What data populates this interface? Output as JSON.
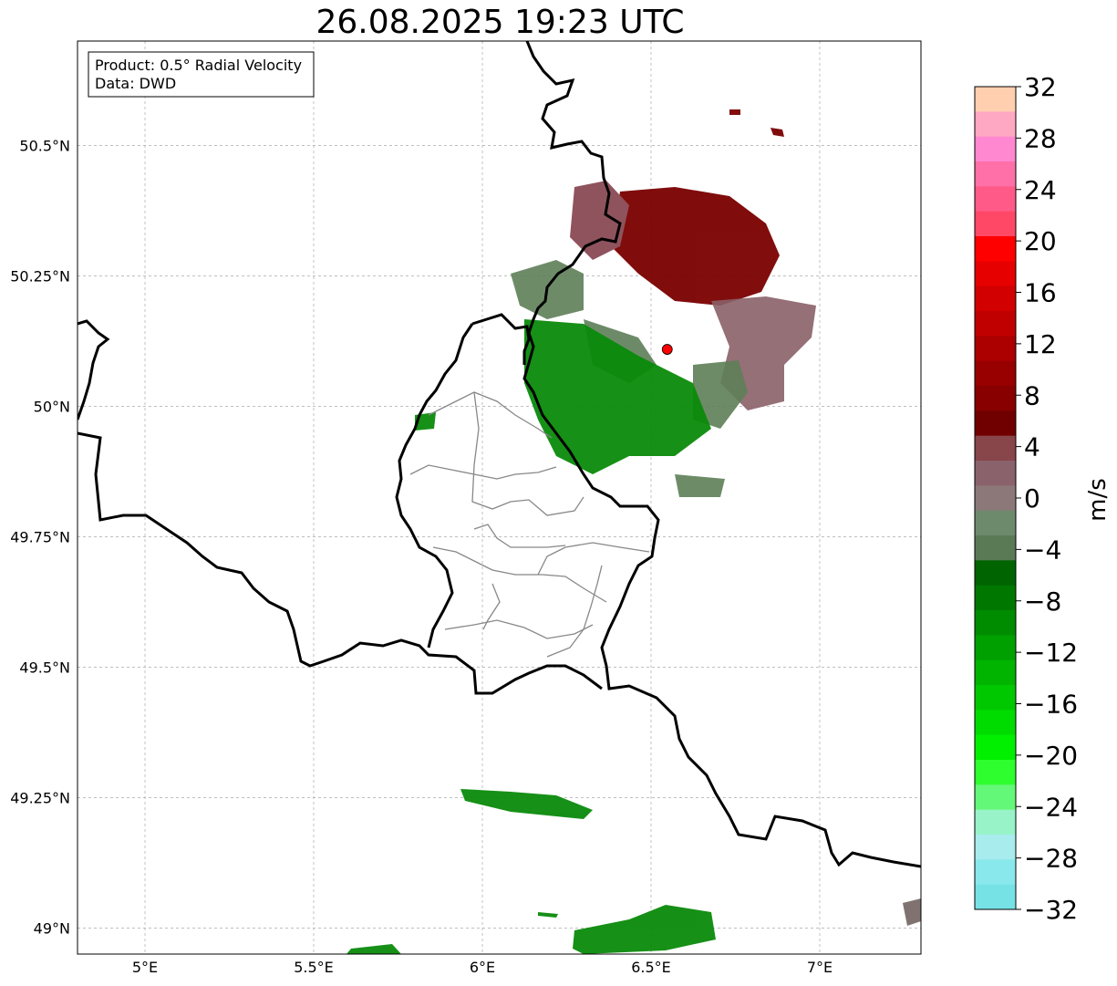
{
  "title": "26.08.2025 19:23 UTC",
  "info_box": {
    "product": "Product: 0.5° Radial Velocity",
    "data": "Data: DWD"
  },
  "map": {
    "lon_range": [
      4.8,
      7.3
    ],
    "lat_range": [
      48.95,
      50.7
    ],
    "lat_ticks": [
      {
        "value": 50.5,
        "label": "50.5°N"
      },
      {
        "value": 50.25,
        "label": "50.25°N"
      },
      {
        "value": 50.0,
        "label": "50°N"
      },
      {
        "value": 49.75,
        "label": "49.75°N"
      },
      {
        "value": 49.5,
        "label": "49.5°N"
      },
      {
        "value": 49.25,
        "label": "49.25°N"
      },
      {
        "value": 49.0,
        "label": "49°N"
      }
    ],
    "lon_ticks": [
      {
        "value": 5.0,
        "label": "5°E"
      },
      {
        "value": 5.5,
        "label": "5.5°E"
      },
      {
        "value": 6.0,
        "label": "6°E"
      },
      {
        "value": 6.5,
        "label": "6.5°E"
      },
      {
        "value": 7.0,
        "label": "7°E"
      }
    ],
    "radar_site": {
      "lon": 6.548,
      "lat": 50.109,
      "color": "#ff0000"
    }
  },
  "colorbar": {
    "label": "m/s",
    "min": -32,
    "max": 32,
    "ticks": [
      "32",
      "28",
      "24",
      "20",
      "16",
      "12",
      "8",
      "4",
      "0",
      "−4",
      "−8",
      "−12",
      "−16",
      "−20",
      "−24",
      "−28",
      "−32"
    ],
    "colors_top_to_bottom": [
      "#ffcfb0",
      "#ffa8c4",
      "#ff88d0",
      "#ff70a8",
      "#ff5a88",
      "#ff4866",
      "#ff0000",
      "#e60000",
      "#d20000",
      "#c00000",
      "#ac0000",
      "#980000",
      "#880000",
      "#700000",
      "#88454a",
      "#8a626c",
      "#8c7878",
      "#6e8a6c",
      "#5a7a56",
      "#006400",
      "#007800",
      "#008c00",
      "#00a000",
      "#00b400",
      "#00c800",
      "#00dc00",
      "#00f000",
      "#2efe2e",
      "#64f878",
      "#98f4c8",
      "#a8ecee",
      "#88e8ec",
      "#76e2e6"
    ]
  }
}
